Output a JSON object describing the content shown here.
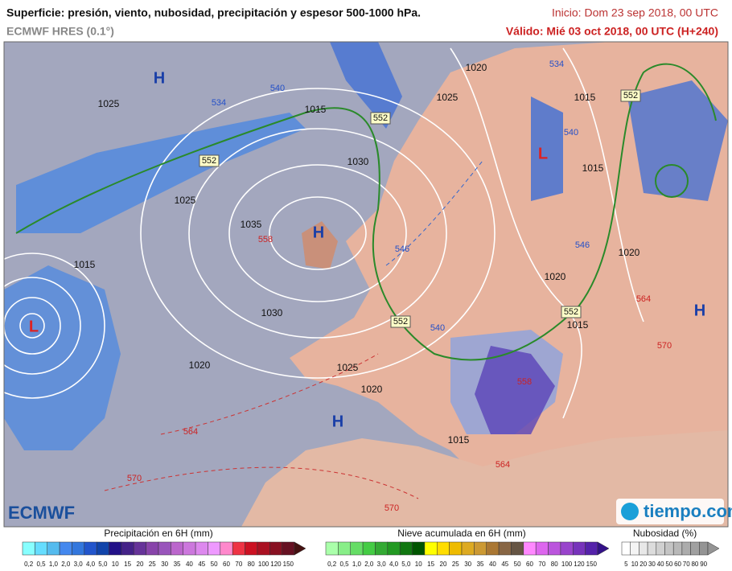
{
  "header": {
    "title": "Superficie: presión, viento, nubosidad, precipitación y espesor 500-1000 hPa.",
    "model": "ECMWF HRES (0.1°)",
    "init": "Inicio: Dom 23 sep 2018, 00 UTC",
    "valid": "Válido: Mié 03 oct 2018, 00 UTC (H+240)"
  },
  "map": {
    "centers": [
      "H",
      "H",
      "H",
      "H",
      "L",
      "L"
    ],
    "isobar_labels": [
      "1025",
      "1015",
      "1025",
      "1020",
      "1015",
      "1030",
      "1025",
      "1035",
      "1015",
      "1030",
      "1020",
      "1025",
      "1020",
      "1020",
      "1015",
      "1015",
      "1020",
      "1015"
    ],
    "thickness_boxes": [
      "552",
      "552",
      "552",
      "552",
      "552"
    ],
    "thickness_blue": [
      "534",
      "540",
      "534",
      "540",
      "546",
      "546",
      "540"
    ],
    "thickness_red": [
      "558",
      "564",
      "570",
      "570",
      "564",
      "564",
      "570",
      "558"
    ]
  },
  "logos": {
    "left": "ECMWF",
    "right": "tiempo.com"
  },
  "legend": {
    "precip": {
      "title": "Precipitación en 6H (mm)",
      "labels": [
        "0,2",
        "0,5",
        "1,0",
        "2,0",
        "3,0",
        "4,0",
        "5,0",
        "10",
        "15",
        "20",
        "25",
        "30",
        "35",
        "40",
        "45",
        "50",
        "60",
        "70",
        "80",
        "100",
        "120",
        "150"
      ],
      "colors": [
        "#8ff",
        "#6df",
        "#5be",
        "#48e",
        "#37d",
        "#25c",
        "#14a",
        "#218",
        "#428",
        "#639",
        "#84a",
        "#95b",
        "#b6c",
        "#c7d",
        "#d8e",
        "#e9f",
        "#f8c",
        "#e34",
        "#c12",
        "#a12",
        "#812",
        "#612",
        "#411"
      ]
    },
    "snow": {
      "title": "Nieve acumulada en 6H (mm)",
      "labels": [
        "0,2",
        "0,5",
        "1,0",
        "2,0",
        "3,0",
        "4,0",
        "5,0",
        "10",
        "15",
        "20",
        "25",
        "30",
        "35",
        "40",
        "45",
        "50",
        "60",
        "70",
        "80",
        "100",
        "120",
        "150"
      ],
      "colors": [
        "#afa",
        "#8e8",
        "#6d6",
        "#4c4",
        "#3a3",
        "#292",
        "#171",
        "#050",
        "#ff0",
        "#fd0",
        "#eb0",
        "#da2",
        "#c93",
        "#a73",
        "#864",
        "#654",
        "#f8f",
        "#d6e",
        "#b5d",
        "#94c",
        "#73b",
        "#52a",
        "#318"
      ]
    },
    "cloud": {
      "title": "Nubosidad (%)",
      "labels": [
        "5",
        "10",
        "20",
        "30",
        "40",
        "50",
        "60",
        "70",
        "80",
        "90"
      ],
      "colors": [
        "#fff",
        "#f4f4f4",
        "#e8e8e8",
        "#dcdcdc",
        "#d0d0d0",
        "#c4c4c4",
        "#b8b8b8",
        "#acacac",
        "#a0a0a0",
        "#949494"
      ]
    }
  }
}
